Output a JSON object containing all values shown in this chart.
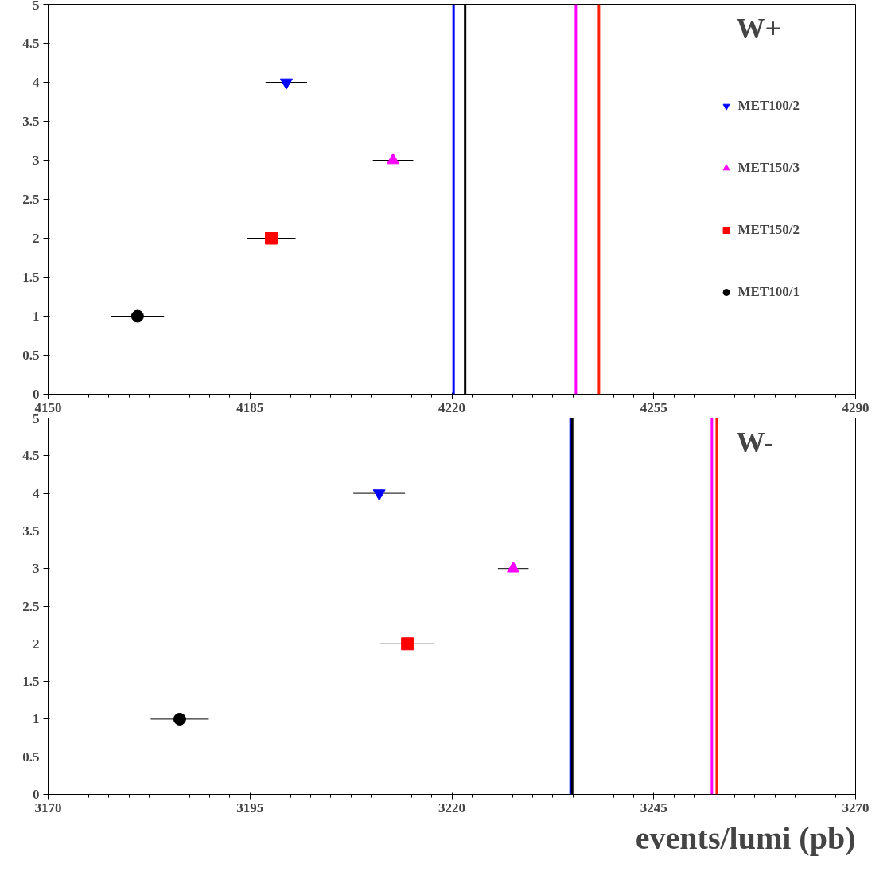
{
  "chart_data": [
    {
      "type": "scatter",
      "title": "W+",
      "xlim": [
        4150,
        4290
      ],
      "xticks": [
        4150,
        4185,
        4220,
        4255,
        4290
      ],
      "ylim": [
        0,
        5
      ],
      "yticks": [
        0,
        0.5,
        1,
        1.5,
        2,
        2.5,
        3,
        3.5,
        4,
        4.5,
        5
      ],
      "grid": false,
      "legend": "right",
      "series": [
        {
          "name": "MET100/2",
          "color": "#0000ff",
          "x": [
            4191.3
          ],
          "values": [
            4
          ],
          "xerrors": [
            3.6
          ]
        },
        {
          "name": "MET150/3",
          "color": "#ff00ff",
          "marker": "triangle",
          "x": [
            4209.8
          ],
          "values": [
            3
          ],
          "xerrors": [
            3.5
          ]
        },
        {
          "name": "MET150/2",
          "color": "#ff0000",
          "marker": "square",
          "x": [
            4188.7
          ],
          "values": [
            2
          ],
          "xerrors": [
            4.2
          ]
        },
        {
          "name": "MET100/1",
          "color": "#000000",
          "marker": "circle",
          "x": [
            4165.5
          ],
          "values": [
            1
          ],
          "xerrors": [
            4.6
          ]
        }
      ],
      "ref_lines": [
        {
          "axis": "x",
          "value": 4220.3,
          "color": "#0000ff"
        },
        {
          "axis": "x",
          "value": 4222.3,
          "color": "#000000"
        },
        {
          "axis": "x",
          "value": 4241.5,
          "color": "#ff00ff"
        },
        {
          "axis": "x",
          "value": 4245.5,
          "color": "#ff2000"
        }
      ]
    },
    {
      "type": "scatter",
      "title": "W-",
      "xlabel": "events/lumi (pb)",
      "xlim": [
        3170,
        3270
      ],
      "xticks": [
        3170,
        3195,
        3220,
        3245,
        3270
      ],
      "ylim": [
        0,
        5
      ],
      "yticks": [
        0,
        0.5,
        1,
        1.5,
        2,
        2.5,
        3,
        3.5,
        4,
        4.5,
        5
      ],
      "grid": false,
      "series": [
        {
          "color": "#0000ff",
          "x": [
            3211.0
          ],
          "values": [
            4
          ],
          "xerrors": [
            3.2
          ]
        },
        {
          "color": "#ff00ff",
          "marker": "triangle",
          "x": [
            3227.6
          ],
          "values": [
            3
          ],
          "xerrors": [
            1.9
          ]
        },
        {
          "color": "#ff0000",
          "marker": "square",
          "x": [
            3214.5
          ],
          "values": [
            2
          ],
          "xerrors": [
            3.4
          ]
        },
        {
          "color": "#000000",
          "marker": "circle",
          "x": [
            3186.3
          ],
          "values": [
            1
          ],
          "xerrors": [
            3.6
          ]
        }
      ],
      "ref_lines": [
        {
          "axis": "x",
          "value": 3234.7,
          "color": "#0000ff"
        },
        {
          "axis": "x",
          "value": 3234.9,
          "color": "#000000"
        },
        {
          "axis": "x",
          "value": 3252.2,
          "color": "#ff00ff"
        },
        {
          "axis": "x",
          "value": 3252.8,
          "color": "#ff2000"
        }
      ]
    }
  ]
}
